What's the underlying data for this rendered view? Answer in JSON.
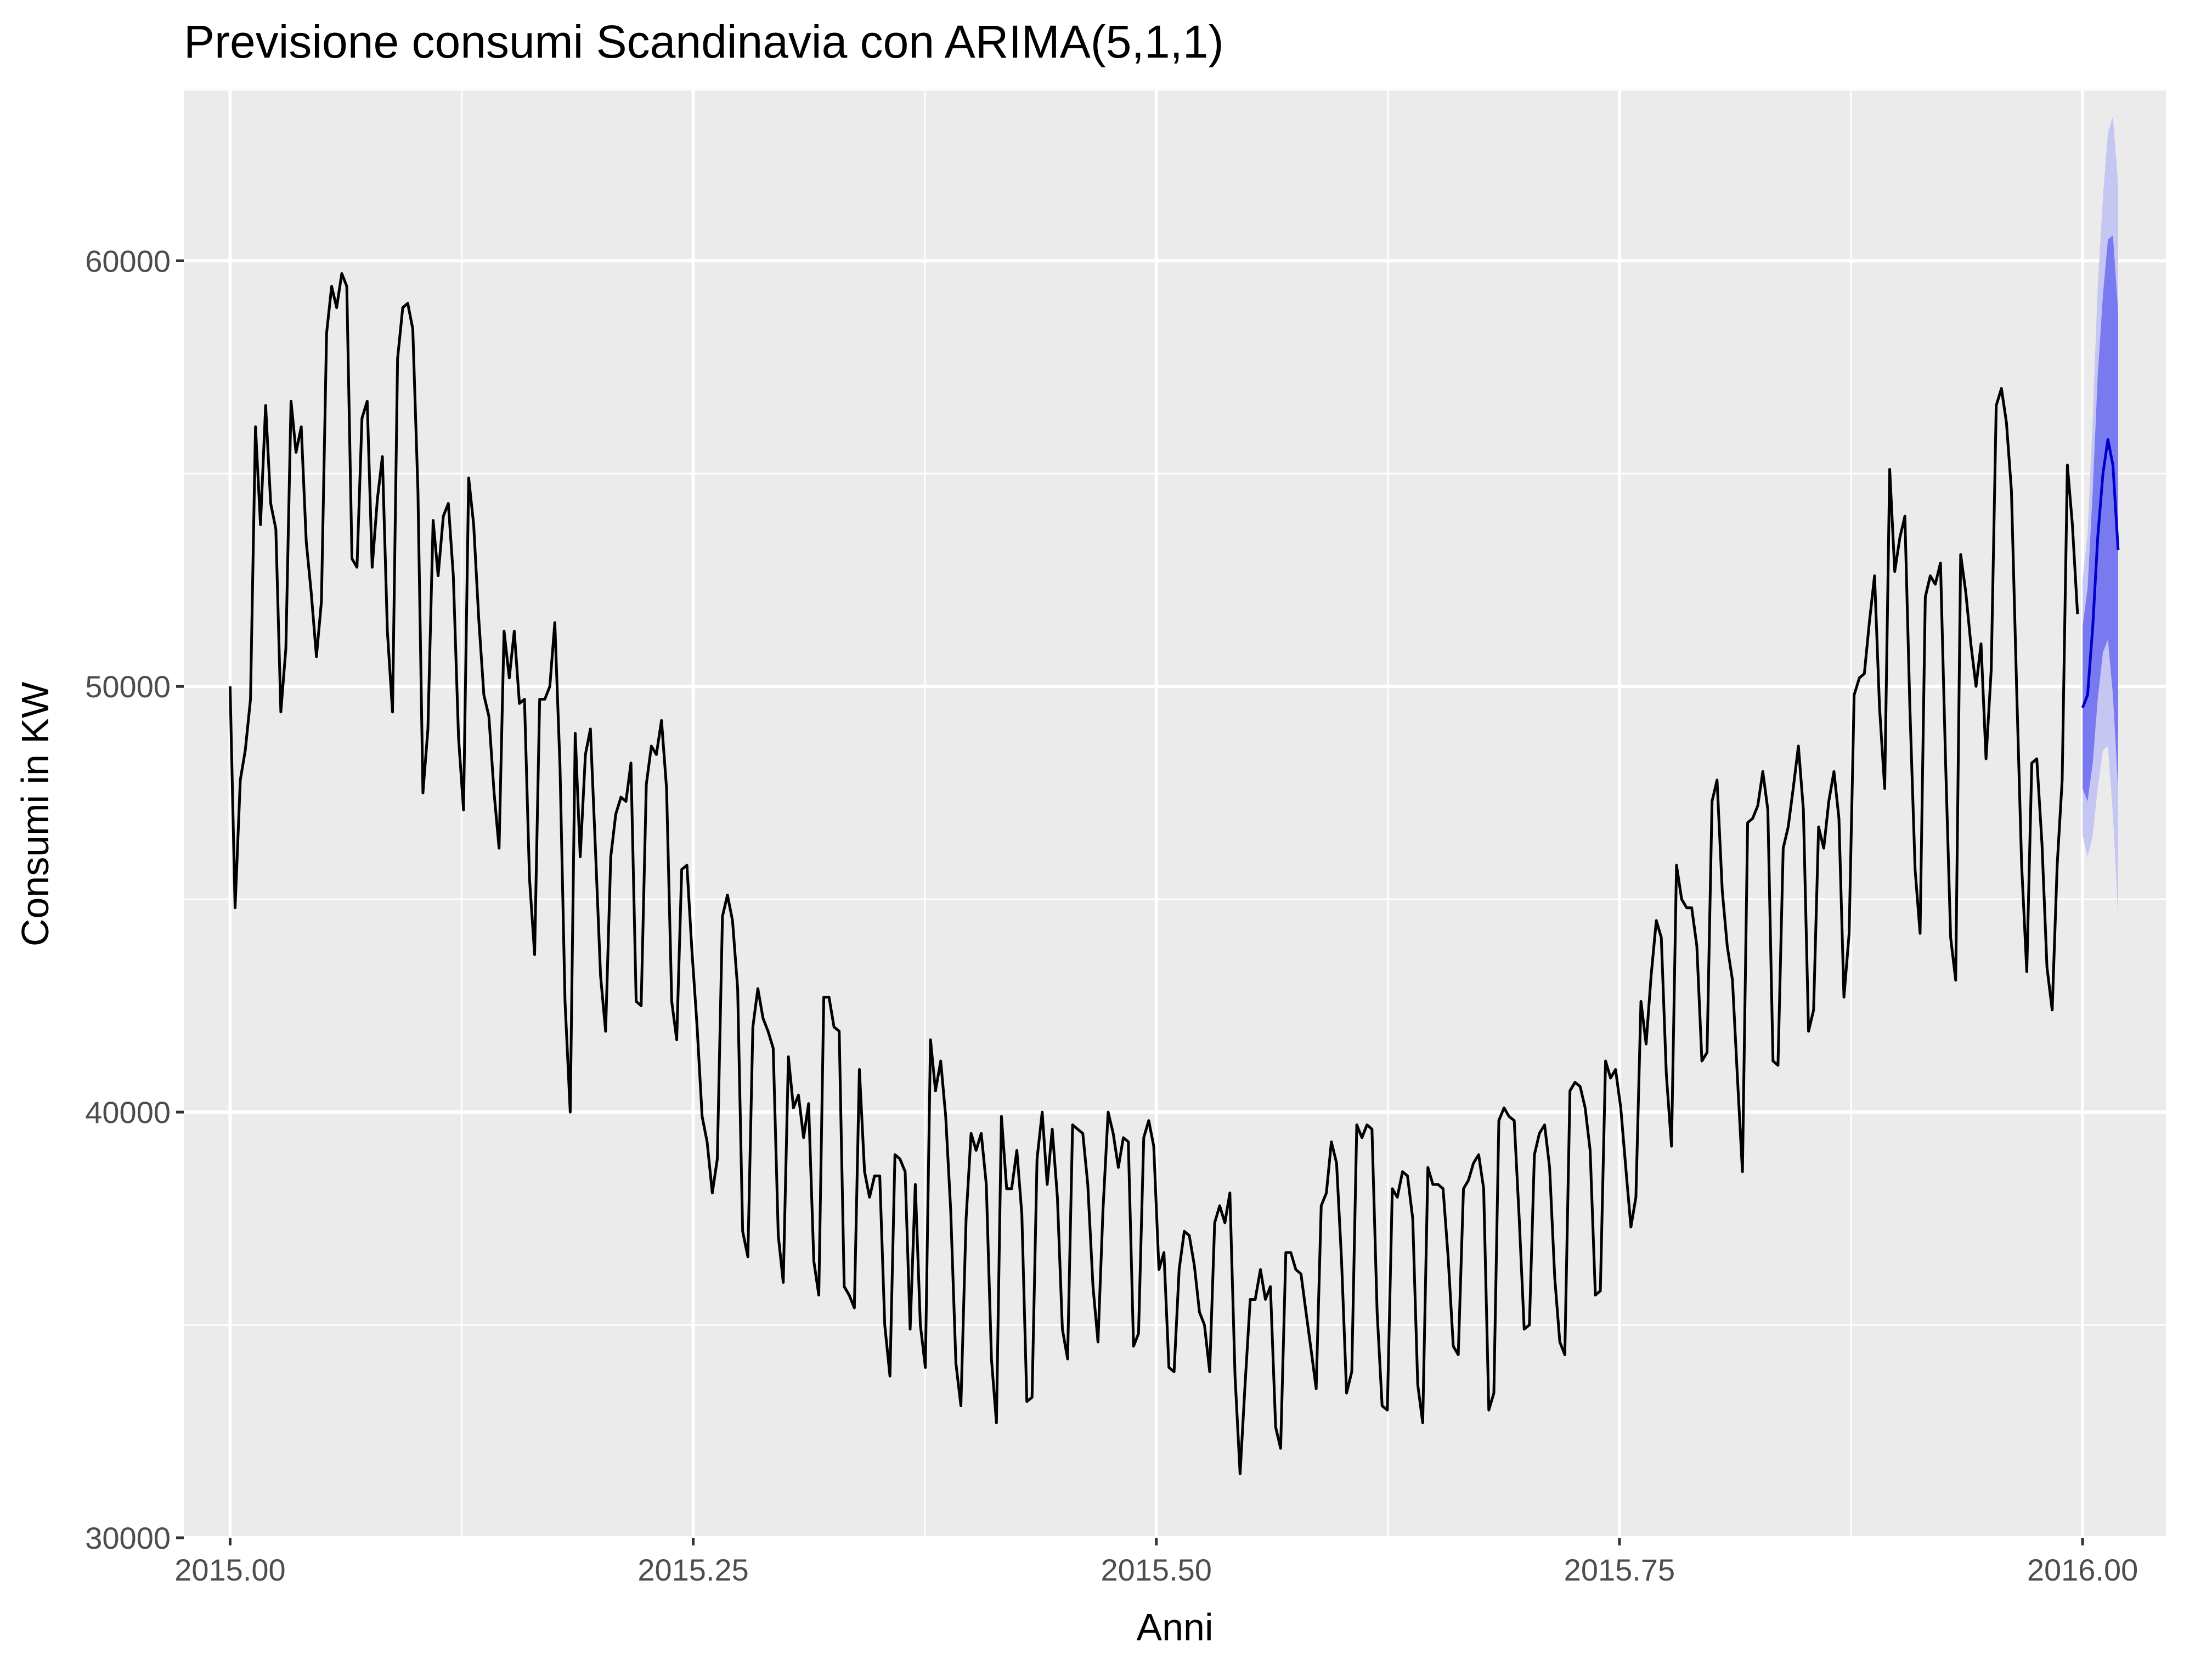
{
  "chart_data": {
    "type": "line",
    "title": "Previsione consumi Scandinavia con ARIMA(5,1,1)",
    "xlabel": "Anni",
    "ylabel": "Consumi in KW",
    "xlim": [
      2014.975,
      2016.045
    ],
    "ylim": [
      30000,
      64000
    ],
    "x_ticks": [
      2015.0,
      2015.25,
      2015.5,
      2015.75,
      2016.0
    ],
    "x_tick_labels": [
      "2015.00",
      "2015.25",
      "2015.50",
      "2015.75",
      "2016.00"
    ],
    "y_ticks": [
      30000,
      40000,
      50000,
      60000
    ],
    "y_tick_labels": [
      "30000",
      "40000",
      "50000",
      "60000"
    ],
    "grid": true,
    "colors": {
      "panel_background": "#ebebeb",
      "grid_line": "#ffffff",
      "history_line": "#000000",
      "forecast_line": "#0000cc",
      "interval_80": "#7a7af0",
      "interval_95": "#c6c6f2"
    },
    "series": [
      {
        "x": [
          2015.0,
          2015.0027,
          2015.0055,
          2015.0082,
          2015.011,
          2015.0137,
          2015.0164,
          2015.0192,
          2015.0219,
          2015.0247,
          2015.0274,
          2015.0301,
          2015.0329,
          2015.0356,
          2015.0384,
          2015.0411,
          2015.0438,
          2015.0466,
          2015.0493,
          2015.0521,
          2015.0548,
          2015.0575,
          2015.0603,
          2015.063,
          2015.0658,
          2015.0685,
          2015.0712,
          2015.074,
          2015.0767,
          2015.0795,
          2015.0822,
          2015.0849,
          2015.0877,
          2015.0904,
          2015.0932,
          2015.0959,
          2015.0986,
          2015.1014,
          2015.1041,
          2015.1068,
          2015.1096,
          2015.1123,
          2015.1151,
          2015.1178,
          2015.1205,
          2015.1233,
          2015.126,
          2015.1288,
          2015.1315,
          2015.1342,
          2015.137,
          2015.1397,
          2015.1425,
          2015.1452,
          2015.1479,
          2015.1507,
          2015.1534,
          2015.1562,
          2015.1589,
          2015.1616,
          2015.1644,
          2015.1671,
          2015.1699,
          2015.1726,
          2015.1753,
          2015.1781,
          2015.1808,
          2015.1836,
          2015.1863,
          2015.189,
          2015.1918,
          2015.1945,
          2015.1973,
          2015.2,
          2015.2027,
          2015.2055,
          2015.2082,
          2015.211,
          2015.2137,
          2015.2164,
          2015.2192,
          2015.2219,
          2015.2247,
          2015.2274,
          2015.2301,
          2015.2329,
          2015.2356,
          2015.2384,
          2015.2411,
          2015.2438,
          2015.2466,
          2015.2493,
          2015.2521,
          2015.2548,
          2015.2575,
          2015.2603,
          2015.263,
          2015.2658,
          2015.2685,
          2015.2712,
          2015.274,
          2015.2767,
          2015.2795,
          2015.2822,
          2015.2849,
          2015.2877,
          2015.2904,
          2015.2932,
          2015.2959,
          2015.2986,
          2015.3014,
          2015.3041,
          2015.3068,
          2015.3096,
          2015.3123,
          2015.3151,
          2015.3178,
          2015.3205,
          2015.3233,
          2015.326,
          2015.3288,
          2015.3315,
          2015.3342,
          2015.337,
          2015.3397,
          2015.3425,
          2015.3452,
          2015.3479,
          2015.3507,
          2015.3534,
          2015.3562,
          2015.3589,
          2015.3616,
          2015.3644,
          2015.3671,
          2015.3699,
          2015.3726,
          2015.3753,
          2015.3781,
          2015.3808,
          2015.3836,
          2015.3863,
          2015.389,
          2015.3918,
          2015.3945,
          2015.3973,
          2015.4,
          2015.4027,
          2015.4055,
          2015.4082,
          2015.411,
          2015.4137,
          2015.4164,
          2015.4192,
          2015.4219,
          2015.4247,
          2015.4274,
          2015.4301,
          2015.4329,
          2015.4356,
          2015.4384,
          2015.4411,
          2015.4438,
          2015.4466,
          2015.4493,
          2015.4521,
          2015.4548,
          2015.4575,
          2015.4603,
          2015.463,
          2015.4658,
          2015.4685,
          2015.4712,
          2015.474,
          2015.4767,
          2015.4795,
          2015.4822,
          2015.4849,
          2015.4877,
          2015.4904,
          2015.4932,
          2015.4959,
          2015.4986,
          2015.5014,
          2015.5041,
          2015.5068,
          2015.5096,
          2015.5123,
          2015.5151,
          2015.5178,
          2015.5205,
          2015.5233,
          2015.526,
          2015.5288,
          2015.5315,
          2015.5342,
          2015.537,
          2015.5397,
          2015.5425,
          2015.5452,
          2015.5479,
          2015.5507,
          2015.5534,
          2015.5562,
          2015.5589,
          2015.5616,
          2015.5644,
          2015.5671,
          2015.5699,
          2015.5726,
          2015.5753,
          2015.5781,
          2015.5808,
          2015.5836,
          2015.5863,
          2015.589,
          2015.5918,
          2015.5945,
          2015.5973,
          2015.6,
          2015.6027,
          2015.6055,
          2015.6082,
          2015.611,
          2015.6137,
          2015.6164,
          2015.6192,
          2015.6219,
          2015.6247,
          2015.6274,
          2015.6301,
          2015.6329,
          2015.6356,
          2015.6384,
          2015.6411,
          2015.6438,
          2015.6466,
          2015.6493,
          2015.6521,
          2015.6548,
          2015.6575,
          2015.6603,
          2015.663,
          2015.6658,
          2015.6685,
          2015.6712,
          2015.674,
          2015.6767,
          2015.6795,
          2015.6822,
          2015.6849,
          2015.6877,
          2015.6904,
          2015.6932,
          2015.6959,
          2015.6986,
          2015.7014,
          2015.7041,
          2015.7068,
          2015.7096,
          2015.7123,
          2015.7151,
          2015.7178,
          2015.7205,
          2015.7233,
          2015.726,
          2015.7288,
          2015.7315,
          2015.7342,
          2015.737,
          2015.7397,
          2015.7425,
          2015.7452,
          2015.7479,
          2015.7507,
          2015.7534,
          2015.7562,
          2015.7589,
          2015.7616,
          2015.7644,
          2015.7671,
          2015.7699,
          2015.7726,
          2015.7753,
          2015.7781,
          2015.7808,
          2015.7836,
          2015.7863,
          2015.789,
          2015.7918,
          2015.7945,
          2015.7973,
          2015.8,
          2015.8027,
          2015.8055,
          2015.8082,
          2015.811,
          2015.8137,
          2015.8164,
          2015.8192,
          2015.8219,
          2015.8247,
          2015.8274,
          2015.8301,
          2015.8329,
          2015.8356,
          2015.8384,
          2015.8411,
          2015.8438,
          2015.8466,
          2015.8493,
          2015.8521,
          2015.8548,
          2015.8575,
          2015.8603,
          2015.863,
          2015.8658,
          2015.8685,
          2015.8712,
          2015.874,
          2015.8767,
          2015.8795,
          2015.8822,
          2015.8849,
          2015.8877,
          2015.8904,
          2015.8932,
          2015.8959,
          2015.8986,
          2015.9014,
          2015.9041,
          2015.9068,
          2015.9096,
          2015.9123,
          2015.9151,
          2015.9178,
          2015.9205,
          2015.9233,
          2015.926,
          2015.9288,
          2015.9315,
          2015.9342,
          2015.937,
          2015.9397,
          2015.9425,
          2015.9452,
          2015.9479,
          2015.9507,
          2015.9534,
          2015.9562,
          2015.9589,
          2015.9616,
          2015.9644,
          2015.9671,
          2015.9699,
          2015.9726,
          2015.9753,
          2015.9781,
          2015.9808,
          2015.9836,
          2015.9863,
          2015.989,
          2015.9918,
          2015.9945,
          2015.9973
        ],
        "y": [
          50000,
          44800,
          47800,
          48500,
          49700,
          56100,
          53800,
          56600,
          54300,
          53700,
          49400,
          50900,
          56700,
          55500,
          56100,
          53400,
          52200,
          50700,
          52000,
          58300,
          59400,
          58900,
          59700,
          59400,
          53000,
          52800,
          56300,
          56700,
          52800,
          54400,
          55400,
          51300,
          49400,
          57700,
          58900,
          59000,
          58400,
          54600,
          47500,
          49000,
          53900,
          52600,
          54000,
          54300,
          52600,
          48800,
          47100,
          54900,
          53800,
          51600,
          49800,
          49300,
          47500,
          46200,
          51300,
          50200,
          51300,
          49600,
          49700,
          45500,
          43700,
          49700,
          49700,
          50000,
          51500,
          48100,
          42600,
          40000,
          48900,
          46000,
          48400,
          49000,
          46100,
          43200,
          41900,
          46000,
          47000,
          47400,
          47300,
          48200,
          42600,
          42500,
          47700,
          48600,
          48400,
          49200,
          47600,
          42600,
          41700,
          45700,
          45800,
          43800,
          42000,
          39900,
          39300,
          38100,
          38900,
          44600,
          45100,
          44500,
          42900,
          37200,
          36600,
          42000,
          42900,
          42200,
          41900,
          41500,
          37100,
          36000,
          41300,
          40100,
          40400,
          39400,
          40200,
          36500,
          35700,
          42700,
          42700,
          42000,
          41900,
          35900,
          35700,
          35400,
          41000,
          38600,
          38000,
          38500,
          38500,
          35000,
          33800,
          39000,
          38900,
          38600,
          34900,
          38300,
          35000,
          34000,
          41700,
          40500,
          41200,
          39900,
          37700,
          34100,
          33100,
          37500,
          39500,
          39100,
          39500,
          38300,
          34200,
          32700,
          39900,
          38200,
          38200,
          39100,
          37600,
          33200,
          33300,
          38900,
          40000,
          38300,
          39600,
          38000,
          34900,
          34200,
          39700,
          39600,
          39500,
          38300,
          35900,
          34600,
          37700,
          40000,
          39500,
          38700,
          39400,
          39300,
          34500,
          34800,
          39400,
          39800,
          39200,
          36300,
          36700,
          34000,
          33900,
          36300,
          37200,
          37100,
          36400,
          35300,
          35000,
          33900,
          37400,
          37800,
          37400,
          38100,
          33800,
          31500,
          33600,
          35600,
          35600,
          36300,
          35600,
          35900,
          32600,
          32100,
          36700,
          36700,
          36300,
          36200,
          35300,
          34400,
          33500,
          37800,
          38100,
          39300,
          38800,
          36500,
          33400,
          33900,
          39700,
          39400,
          39700,
          39600,
          35300,
          33100,
          33000,
          38200,
          38000,
          38600,
          38500,
          37500,
          33600,
          32700,
          38700,
          38300,
          38300,
          38200,
          36600,
          34500,
          34300,
          38200,
          38400,
          38800,
          39000,
          38200,
          33000,
          33400,
          39800,
          40100,
          39900,
          39800,
          37500,
          34900,
          35000,
          39000,
          39500,
          39700,
          38700,
          36100,
          34600,
          34300,
          40500,
          40700,
          40600,
          40100,
          39100,
          35700,
          35800,
          41200,
          40800,
          41000,
          40100,
          38700,
          37300,
          38000,
          42600,
          41600,
          43200,
          44500,
          44100,
          40900,
          39200,
          45800,
          45000,
          44800,
          44800,
          43900,
          41200,
          41400,
          47300,
          47800,
          45200,
          43900,
          43100,
          40800,
          38600,
          46800,
          46900,
          47200,
          48000,
          47100,
          41200,
          41100,
          46200,
          46700,
          47600,
          48600,
          47100,
          41900,
          42400,
          46700,
          46200,
          47300,
          48000,
          46900,
          42700,
          44200,
          49800,
          50200,
          50300,
          51500,
          52600,
          49500,
          47600,
          55100,
          52700,
          53500,
          54000,
          49500,
          45700,
          44200,
          52100,
          52600,
          52400,
          52900,
          48300,
          44100,
          43100,
          53100,
          52200,
          51000,
          50000,
          51000,
          48300,
          50400,
          56600,
          57000,
          56200,
          54600,
          50000,
          45800,
          43300,
          48200,
          48300,
          46300,
          43400,
          42400,
          45800,
          47800,
          55200,
          53800,
          51700
        ],
        "color": "#000000"
      },
      {
        "x": [
          2016.0,
          2016.0027,
          2016.0055,
          2016.0082,
          2016.011,
          2016.0137,
          2016.0164,
          2016.0192
        ],
        "y": [
          49500,
          49800,
          51400,
          53500,
          55000,
          55800,
          55200,
          53200
        ],
        "lo80": [
          47600,
          47300,
          48200,
          49700,
          50800,
          51100,
          49800,
          47600
        ],
        "hi80": [
          51400,
          52300,
          54600,
          57300,
          59200,
          60500,
          60600,
          58800
        ],
        "lo95": [
          46500,
          46000,
          46500,
          47600,
          48500,
          48600,
          47000,
          44600
        ],
        "hi95": [
          52500,
          53600,
          56300,
          59400,
          61500,
          63000,
          63400,
          61800
        ],
        "color": "#0000cc"
      }
    ]
  }
}
